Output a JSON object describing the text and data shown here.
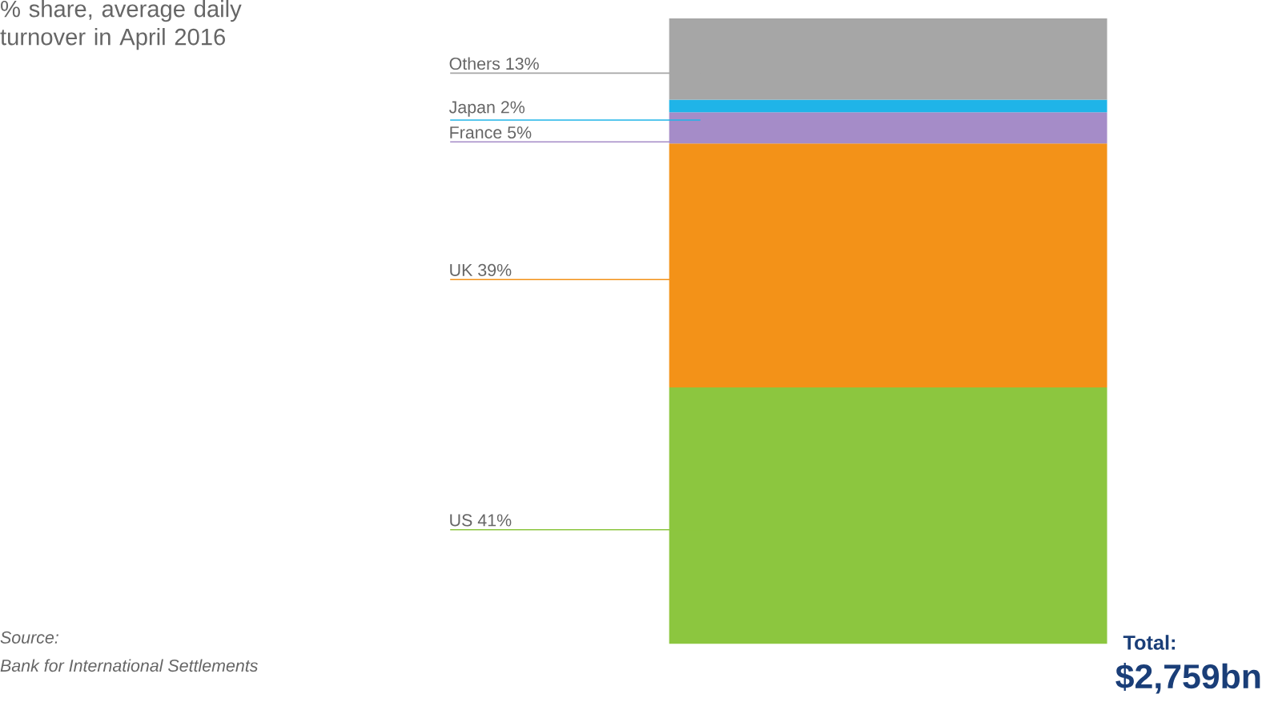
{
  "chart_data": {
    "type": "other",
    "title": "% share, average daily turnover in April 2016",
    "categories": [
      "Others",
      "Japan",
      "France",
      "UK",
      "US"
    ],
    "values": [
      13,
      2,
      5,
      39,
      41
    ],
    "value_labels": [
      "13%",
      "2%",
      "5%",
      "39%",
      "41%"
    ],
    "colors": [
      "#a6a6a6",
      "#1fb4e8",
      "#a58cc8",
      "#f39218",
      "#8cc63f"
    ],
    "annotations": [
      "Source:",
      "Bank for International Settlements",
      "Total:",
      "$2,759bn"
    ]
  }
}
